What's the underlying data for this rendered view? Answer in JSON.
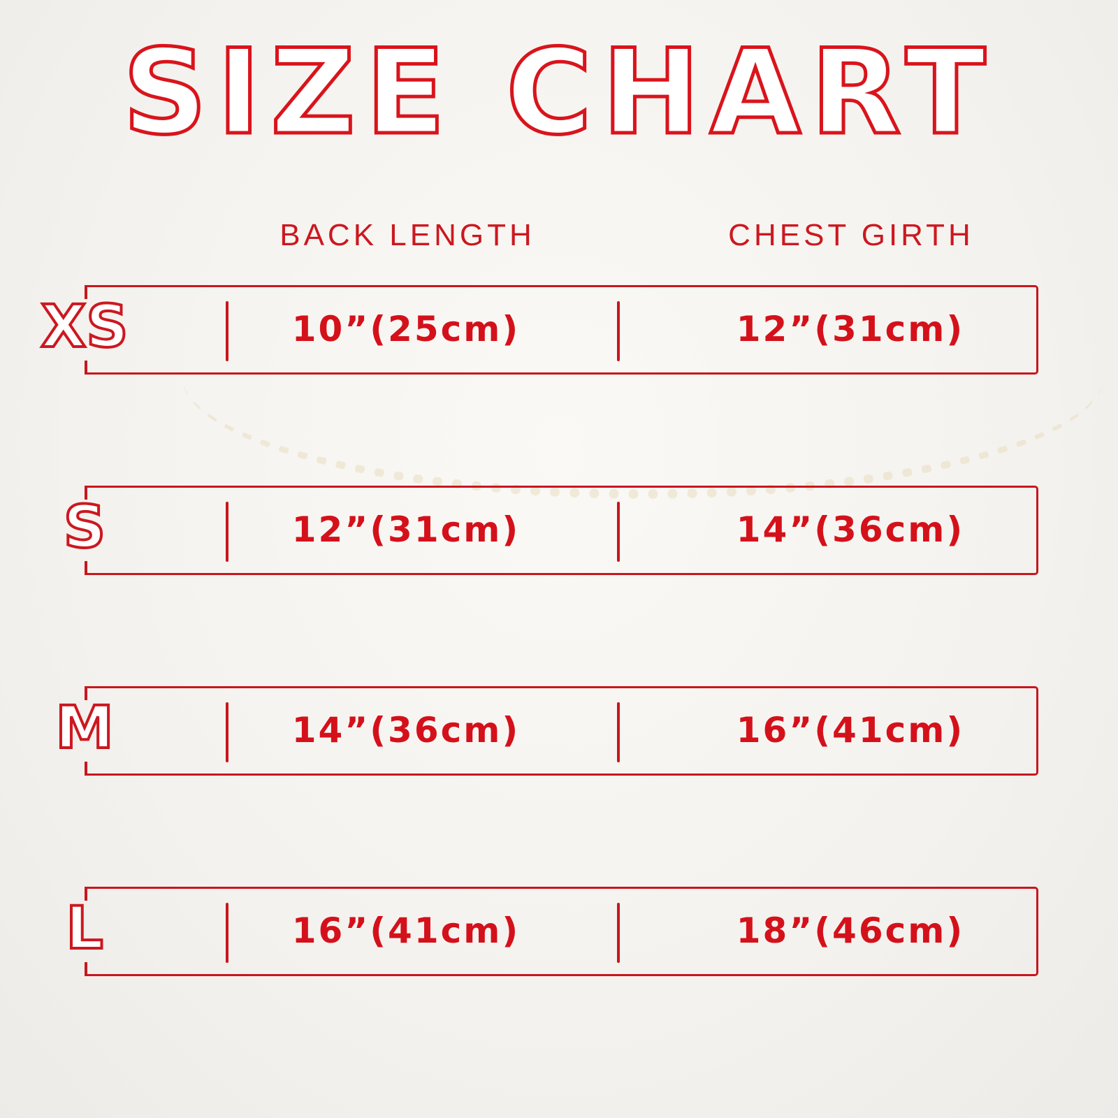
{
  "title": "SIZE CHART",
  "headers": {
    "back_length": "BACK LENGTH",
    "chest_girth": "CHEST GIRTH"
  },
  "accent_color": "#d4111b",
  "rows": [
    {
      "size": "XS",
      "back_length": "10”(25cm)",
      "chest_girth": "12”(31cm)"
    },
    {
      "size": "S",
      "back_length": "12”(31cm)",
      "chest_girth": "14”(36cm)"
    },
    {
      "size": "M",
      "back_length": "14”(36cm)",
      "chest_girth": "16”(41cm)"
    },
    {
      "size": "L",
      "back_length": "16”(41cm)",
      "chest_girth": "18”(46cm)"
    }
  ]
}
